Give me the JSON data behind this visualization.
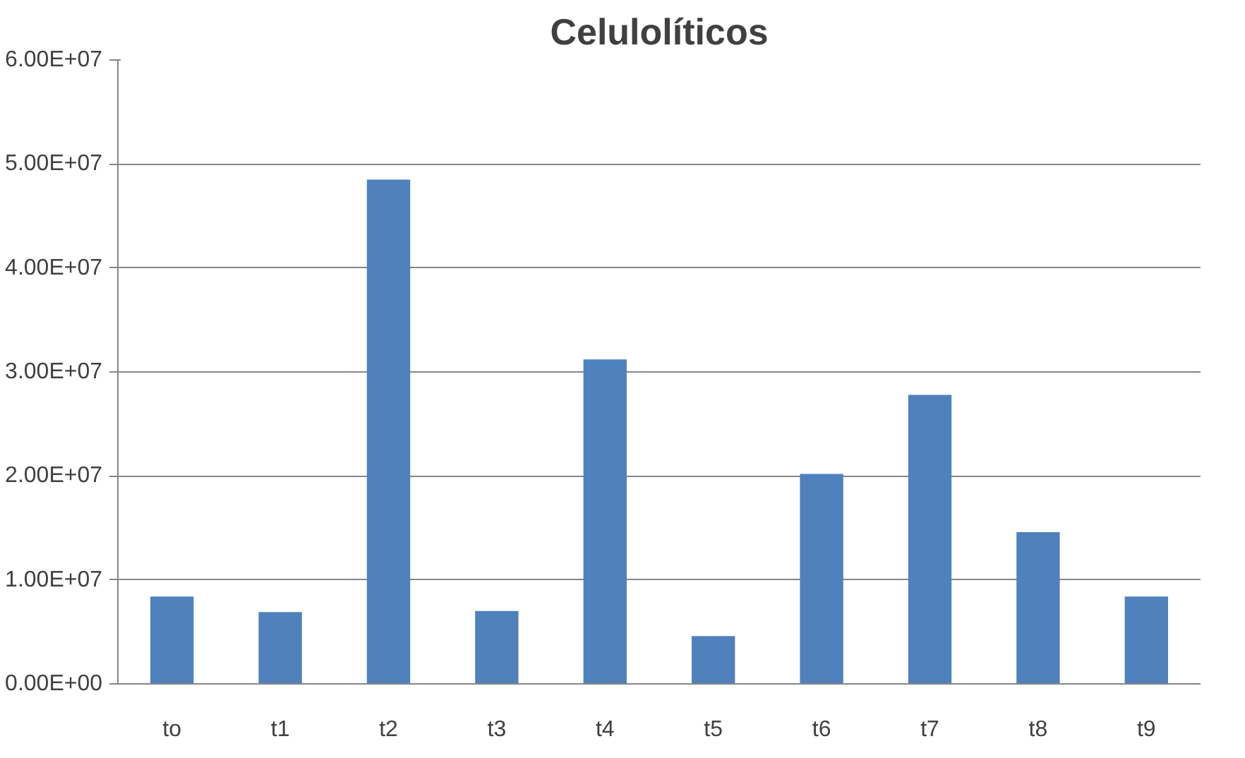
{
  "chart_data": {
    "type": "bar",
    "title": "Celulolíticos",
    "categories": [
      "to",
      "t1",
      "t2",
      "t3",
      "t4",
      "t5",
      "t6",
      "t7",
      "t8",
      "t9"
    ],
    "values": [
      8400000,
      6900000,
      48500000,
      7000000,
      31200000,
      4600000,
      20200000,
      27800000,
      14600000,
      8400000
    ],
    "color": "#4f81bd",
    "ylim": [
      0,
      60000000
    ],
    "yticks": [
      {
        "value": 0,
        "label": "0.00E+00"
      },
      {
        "value": 10000000,
        "label": "1.00E+07"
      },
      {
        "value": 20000000,
        "label": "2.00E+07"
      },
      {
        "value": 30000000,
        "label": "3.00E+07"
      },
      {
        "value": 40000000,
        "label": "4.00E+07"
      },
      {
        "value": 50000000,
        "label": "5.00E+07"
      },
      {
        "value": 60000000,
        "label": "6.00E+07"
      }
    ],
    "grid": "y",
    "legend": false
  }
}
